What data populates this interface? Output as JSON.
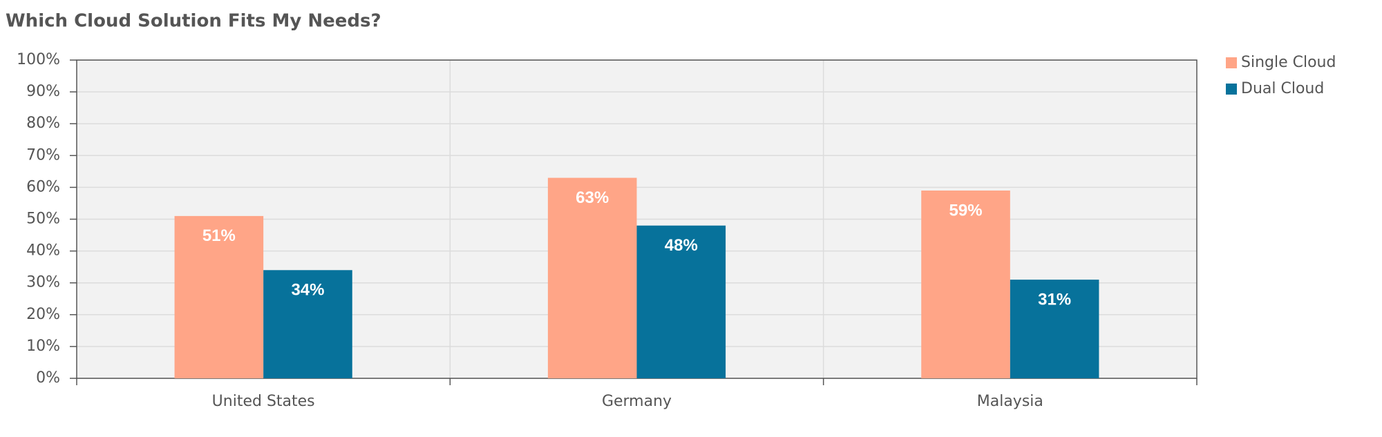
{
  "chart_data": {
    "type": "bar",
    "title": "Which Cloud Solution Fits My Needs?",
    "categories": [
      "United States",
      "Germany",
      "Malaysia"
    ],
    "series": [
      {
        "name": "Single Cloud",
        "color": "#ffa587",
        "values": [
          51,
          63,
          59
        ],
        "value_labels": [
          "51%",
          "63%",
          "59%"
        ]
      },
      {
        "name": "Dual Cloud",
        "color": "#07729b",
        "values": [
          34,
          48,
          31
        ],
        "value_labels": [
          "34%",
          "48%",
          "31%"
        ]
      }
    ],
    "ylim": [
      0,
      100
    ],
    "yticks": [
      {
        "value": 0,
        "label": "0%"
      },
      {
        "value": 10,
        "label": "10%"
      },
      {
        "value": 20,
        "label": "20%"
      },
      {
        "value": 30,
        "label": "30%"
      },
      {
        "value": 40,
        "label": "40%"
      },
      {
        "value": 50,
        "label": "50%"
      },
      {
        "value": 60,
        "label": "60%"
      },
      {
        "value": 70,
        "label": "70%"
      },
      {
        "value": 80,
        "label": "80%"
      },
      {
        "value": 90,
        "label": "90%"
      },
      {
        "value": 100,
        "label": "100%"
      }
    ],
    "grid": true,
    "legend": "top-right"
  }
}
